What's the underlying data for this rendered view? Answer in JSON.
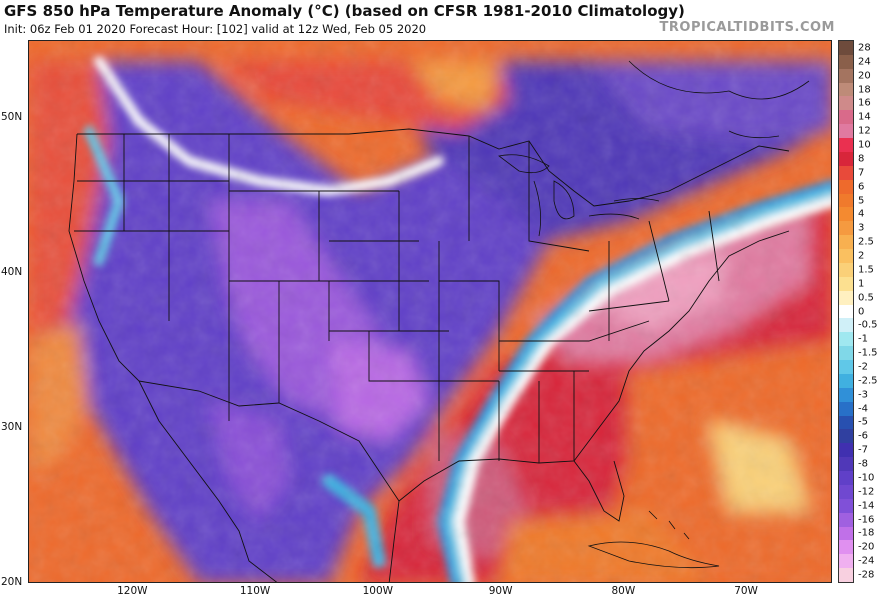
{
  "header": {
    "title": "GFS 850 hPa Temperature Anomaly (°C) (based on CFSR 1981-2010 Climatology)",
    "subtitle": "Init: 06z Feb 01 2020   Forecast Hour: [102]   valid at 12z Wed, Feb 05 2020",
    "credit": "TROPICALTIDBITS.COM"
  },
  "axes": {
    "lat_ticks": [
      {
        "label": "50N",
        "lat": 50
      },
      {
        "label": "40N",
        "lat": 40
      },
      {
        "label": "30N",
        "lat": 30
      },
      {
        "label": "20N",
        "lat": 20
      }
    ],
    "lon_ticks": [
      {
        "label": "120W",
        "lon": -120
      },
      {
        "label": "110W",
        "lon": -110
      },
      {
        "label": "100W",
        "lon": -100
      },
      {
        "label": "90W",
        "lon": -90
      },
      {
        "label": "80W",
        "lon": -80
      },
      {
        "label": "70W",
        "lon": -70
      }
    ]
  },
  "colorbar": {
    "levels": [
      "28",
      "24",
      "20",
      "18",
      "16",
      "14",
      "12",
      "10",
      "8",
      "7",
      "6",
      "5",
      "4",
      "3",
      "2.5",
      "2",
      "1.5",
      "1",
      "0.5",
      "0",
      "-0.5",
      "-1",
      "-1.5",
      "-2",
      "-2.5",
      "-3",
      "-4",
      "-5",
      "-6",
      "-7",
      "-8",
      "-10",
      "-12",
      "-14",
      "-16",
      "-18",
      "-20",
      "-24",
      "-28"
    ],
    "colors": [
      "#6e4b3c",
      "#8a5f4a",
      "#a47460",
      "#be8b78",
      "#cf8a8a",
      "#d96a8a",
      "#e07aa0",
      "#ea3050",
      "#d8263a",
      "#e84a3a",
      "#ee6a2c",
      "#f07a2c",
      "#f48a30",
      "#f59a40",
      "#f8b050",
      "#fac060",
      "#fad078",
      "#fce090",
      "#fff0c0",
      "#ffffff",
      "#d0f0f8",
      "#a0e8f0",
      "#80d8e8",
      "#60c8e8",
      "#40b0e0",
      "#3090d8",
      "#2870c8",
      "#2850b0",
      "#3040a0",
      "#4030b0",
      "#5038b8",
      "#6040c8",
      "#7048d0",
      "#8050d8",
      "#a060e0",
      "#c070e8",
      "#e090f0",
      "#f0b0f0",
      "#f8d0e0"
    ]
  },
  "map_regions": {
    "canada_north_warm": "#e84a3a",
    "central_us_cold": "#7048d0",
    "southeast_warm": "#d8263a",
    "atlantic_warm": "#ee6a2c",
    "west_coast_warm": "#e8503a",
    "cold_core": "#c070e8",
    "mid_atlantic_warm": "#e07aa0",
    "front_white": "#ffffff",
    "front_blue": "#60c8e8"
  }
}
